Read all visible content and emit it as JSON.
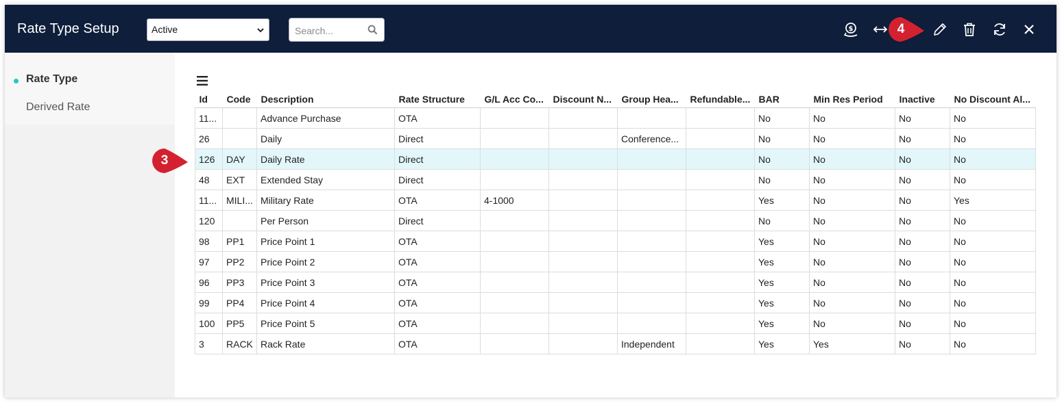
{
  "header": {
    "title": "Rate Type Setup",
    "status_select": {
      "value": "Active",
      "options": [
        "Active"
      ]
    },
    "search": {
      "placeholder": "Search..."
    },
    "toolbar_icons": [
      "dollar-pin-icon",
      "resize-horizontal-icon",
      "pencil-icon",
      "trash-icon",
      "refresh-icon",
      "close-icon"
    ]
  },
  "callouts": {
    "edit_step": "4",
    "row_step": "3"
  },
  "sidebar": {
    "items": [
      {
        "label": "Rate Type",
        "active": true
      },
      {
        "label": "Derived Rate",
        "active": false
      }
    ]
  },
  "grid": {
    "columns": [
      "Id",
      "Code",
      "Description",
      "Rate Structure",
      "G/L Acc Co...",
      "Discount N...",
      "Group Hea...",
      "Refundable...",
      "BAR",
      "Min Res Period",
      "Inactive",
      "No Discount Al..."
    ],
    "rows": [
      [
        "11...",
        "",
        "Advance Purchase",
        "OTA",
        "",
        "",
        "",
        "",
        "No",
        "No",
        "No",
        "No"
      ],
      [
        "26",
        "",
        "Daily",
        "Direct",
        "",
        "",
        "Conference...",
        "",
        "No",
        "No",
        "No",
        "No"
      ],
      [
        "126",
        "DAY",
        "Daily Rate",
        "Direct",
        "",
        "",
        "",
        "",
        "No",
        "No",
        "No",
        "No"
      ],
      [
        "48",
        "EXT",
        "Extended Stay",
        "Direct",
        "",
        "",
        "",
        "",
        "No",
        "No",
        "No",
        "No"
      ],
      [
        "11...",
        "MILI...",
        "Military Rate",
        "OTA",
        "4-1000",
        "",
        "",
        "",
        "Yes",
        "No",
        "No",
        "Yes"
      ],
      [
        "120",
        "",
        "Per Person",
        "Direct",
        "",
        "",
        "",
        "",
        "No",
        "No",
        "No",
        "No"
      ],
      [
        "98",
        "PP1",
        "Price Point 1",
        "OTA",
        "",
        "",
        "",
        "",
        "Yes",
        "No",
        "No",
        "No"
      ],
      [
        "97",
        "PP2",
        "Price Point 2",
        "OTA",
        "",
        "",
        "",
        "",
        "Yes",
        "No",
        "No",
        "No"
      ],
      [
        "96",
        "PP3",
        "Price Point 3",
        "OTA",
        "",
        "",
        "",
        "",
        "Yes",
        "No",
        "No",
        "No"
      ],
      [
        "99",
        "PP4",
        "Price Point 4",
        "OTA",
        "",
        "",
        "",
        "",
        "Yes",
        "No",
        "No",
        "No"
      ],
      [
        "100",
        "PP5",
        "Price Point 5",
        "OTA",
        "",
        "",
        "",
        "",
        "Yes",
        "No",
        "No",
        "No"
      ],
      [
        "3",
        "RACK",
        "Rack Rate",
        "OTA",
        "",
        "",
        "Independent",
        "",
        "Yes",
        "Yes",
        "No",
        "No"
      ]
    ],
    "selected_row_index": 2
  },
  "colors": {
    "header_bg": "#0e1e3b",
    "accent_dot": "#22c6cf",
    "selected_row": "#e3f7fb",
    "callout": "#d42130"
  }
}
